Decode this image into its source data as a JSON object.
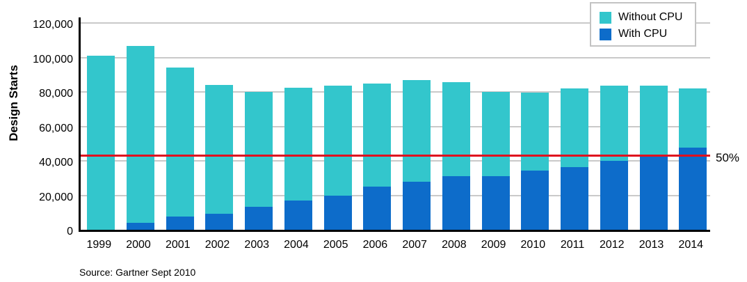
{
  "chart_data": {
    "type": "bar",
    "stacked": true,
    "title": "",
    "xlabel": "",
    "ylabel": "Design Starts",
    "categories": [
      "1999",
      "2000",
      "2001",
      "2002",
      "2003",
      "2004",
      "2005",
      "2006",
      "2007",
      "2008",
      "2009",
      "2010",
      "2011",
      "2012",
      "2013",
      "2014"
    ],
    "series": [
      {
        "name": "Without CPU",
        "color": "#33c6cc",
        "values": [
          101000,
          102500,
          86500,
          74500,
          66500,
          65500,
          63500,
          60000,
          59000,
          54500,
          49000,
          45000,
          45500,
          43500,
          41000,
          34500
        ]
      },
      {
        "name": "With CPU",
        "color": "#0d6cca",
        "values": [
          0,
          4000,
          7500,
          9500,
          13500,
          17000,
          20000,
          25000,
          28000,
          31000,
          31000,
          34500,
          36500,
          40000,
          42500,
          47500
        ]
      }
    ],
    "totals": [
      101000,
      106500,
      94000,
      84000,
      80000,
      82500,
      83500,
      85000,
      87000,
      85500,
      80000,
      79500,
      82000,
      83500,
      83500,
      82000
    ],
    "ylim": [
      0,
      124000
    ],
    "ytick_values": [
      0,
      20000,
      40000,
      60000,
      80000,
      100000,
      120000
    ],
    "ytick_labels": [
      "0",
      "20,000",
      "40,000",
      "60,000",
      "80,000",
      "100,000",
      "120,000"
    ],
    "grid": "horizontal",
    "legend_position": "top-right",
    "ref_line": {
      "value": 43000,
      "label": "50%",
      "color": "#e0101e"
    },
    "source": "Source: Gartner Sept 2010"
  }
}
